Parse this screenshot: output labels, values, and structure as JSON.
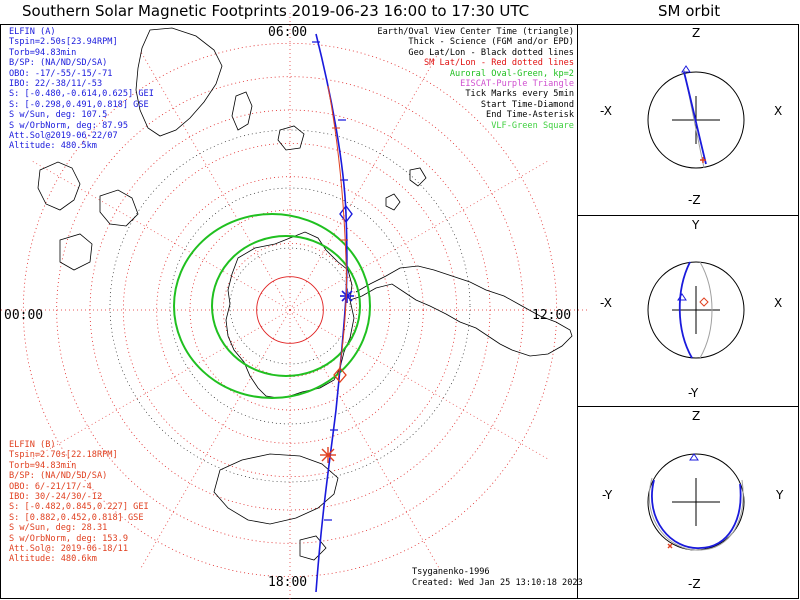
{
  "title": "Southern Solar Magnetic Footprints 2019-06-23 16:00 to 17:30 UTC",
  "sm_title": "SM orbit",
  "elfin_a": {
    "lines": [
      "ELFIN (A)",
      "Tspin=2.50s[23.94RPM]",
      "Torb=94.83min",
      "B/SP: (NA/ND/SD/SA)",
      "OBO: -17/-55/-15/-71",
      "IBO: 22/-38/11/-53",
      "S: [-0.480,-0.614,0.625] GEI",
      "S: [-0.298,0.491,0.818] GSE",
      "S w/Sun, deg: 107.5",
      "S w/OrbNorm, deg: 87.95",
      "Att.Sol@2019-06-22/07",
      "Altitude: 480.5km"
    ]
  },
  "elfin_b": {
    "lines": [
      "ELFIN (B)",
      "Tspin=2.70s[22.18RPM]",
      "Torb=94.83min",
      "B/SP: (NA/ND/SD/SA)",
      "OBO: 6/-21/17/-4",
      "IBO: 30/-24/30/-12",
      "S: [-0.482,0.845,0.227] GEI",
      "S: [0.882,0.452,0.818] GSE",
      "S w/Sun, deg: 28.31",
      "S w/OrbNorm, deg: 153.9",
      "Att.Sol@: 2019-06-18/11",
      "Altitude: 480.6km"
    ]
  },
  "legend": {
    "lines": [
      "Earth/Oval View Center Time (triangle)",
      "Thick - Science (FGM and/or EPD)",
      "Geo Lat/Lon - Black dotted lines",
      "SM Lat/Lon - Red dotted lines",
      "Auroral Oval-Green, kp=2",
      "EISCAT-Purple Triangle",
      "Tick Marks every 5min",
      "Start Time-Diamond",
      "End Time-Asterisk",
      "VLF-Green Square"
    ]
  },
  "footer": {
    "credit": "Tsyganenko-1996",
    "created": "Created: Wed Jan 25 13:10:18 2023"
  },
  "clock_labels": {
    "top": "06:00",
    "left": "00:00",
    "right": "12:00",
    "bottom": "18:00"
  },
  "sm_panels": [
    {
      "top": "Z",
      "bottom": "-Z",
      "left": "-X",
      "right": "X"
    },
    {
      "top": "Y",
      "bottom": "-Y",
      "left": "-X",
      "right": "X"
    },
    {
      "top": "Z",
      "bottom": "-Z",
      "left": "-Y",
      "right": "Y"
    }
  ],
  "colors": {
    "elfin_a": "#1a1adc",
    "elfin_b": "#e04020",
    "auroral_oval": "#20c020",
    "sm_grid": "#e02020",
    "legend_red": "#e01010"
  },
  "chart_data": {
    "type": "polar-map",
    "projection": "southern hemisphere solar magnetic",
    "kp": 2,
    "sm_latitude_rings_deg": [
      -80,
      -70,
      -60,
      -50,
      -40,
      -30,
      -20,
      -10
    ],
    "mlt_labels_hours": [
      "00:00",
      "06:00",
      "12:00",
      "18:00"
    ],
    "tick_interval_min": 5,
    "start_marker": "diamond",
    "end_marker": "asterisk"
  }
}
